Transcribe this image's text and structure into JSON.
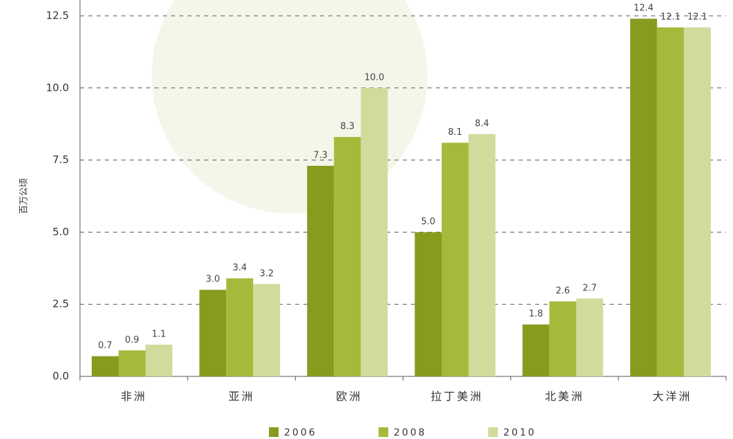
{
  "chart_data": {
    "type": "bar",
    "y_label": "百万公顷",
    "categories": [
      "非洲",
      "亚洲",
      "欧洲",
      "拉丁美洲",
      "北美洲",
      "大洋洲"
    ],
    "series": [
      {
        "name": "2006",
        "color": "#879c1f",
        "values": [
          0.7,
          3.0,
          7.3,
          5.0,
          1.8,
          12.4
        ],
        "value_labels": [
          "0.7",
          "3.0",
          "7.3",
          "5.0",
          "1.8",
          "12.4"
        ]
      },
      {
        "name": "2008",
        "color": "#a5ba3a",
        "values": [
          0.9,
          3.4,
          8.3,
          8.1,
          2.6,
          12.1
        ],
        "value_labels": [
          "0.9",
          "3.4",
          "8.3",
          "8.1",
          "2.6",
          "12.1"
        ]
      },
      {
        "name": "2010",
        "color": "#d0dc9c",
        "values": [
          1.1,
          3.2,
          10.0,
          8.4,
          2.7,
          12.1
        ],
        "value_labels": [
          "1.1",
          "3.2",
          "10.0",
          "8.4",
          "2.7",
          "12.1"
        ]
      }
    ],
    "ylim": [
      0,
      12.5
    ],
    "yticks": [
      {
        "value": 0,
        "label": "0.0"
      },
      2.5,
      {
        "value": 5,
        "label": "5.0"
      },
      7.5,
      {
        "value": 10,
        "label": "10.0"
      },
      12.5
    ],
    "grid": true
  }
}
